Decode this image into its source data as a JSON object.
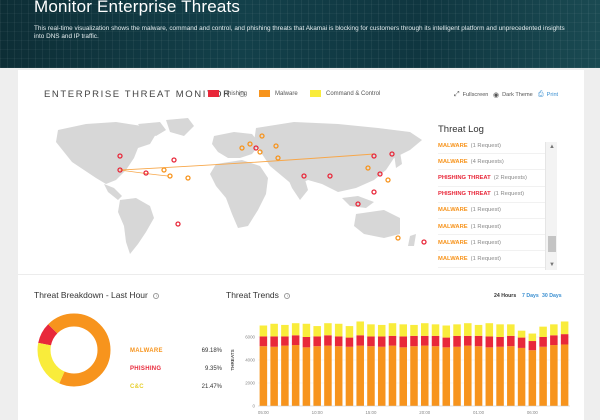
{
  "hero": {
    "title": "Monitor Enterprise Threats",
    "description": "This real-time visualization shows the malware, command and control, and phishing threats that Akamai is blocking for customers through its intelligent platform and unprecedented insights into DNS and IP traffic."
  },
  "monitor": {
    "title": "ENTERPRISE THREAT MONITOR",
    "legend": [
      {
        "label": "Phishing",
        "color": "#e8283a"
      },
      {
        "label": "Malware",
        "color": "#f7941d"
      },
      {
        "label": "Command & Control",
        "color": "#f9ec3b"
      }
    ],
    "toolbar": {
      "fullscreen": "Fullscreen",
      "dark_theme": "Dark Theme",
      "print": "Print",
      "fullscreen_icon": "expand-icon",
      "dark_theme_icon": "radio-icon",
      "print_icon": "printer-icon"
    }
  },
  "threat_log": {
    "title": "Threat Log",
    "entries": [
      {
        "type": "MALWARE",
        "detail": "(1 Request)",
        "color": "#f7941d"
      },
      {
        "type": "MALWARE",
        "detail": "(4 Requests)",
        "color": "#f7941d"
      },
      {
        "type": "PHISHING THREAT",
        "detail": "(2 Requests)",
        "color": "#e8283a"
      },
      {
        "type": "PHISHING THREAT",
        "detail": "(1 Request)",
        "color": "#e8283a"
      },
      {
        "type": "MALWARE",
        "detail": "(1 Request)",
        "color": "#f7941d"
      },
      {
        "type": "MALWARE",
        "detail": "(1 Request)",
        "color": "#f7941d"
      },
      {
        "type": "MALWARE",
        "detail": "(1 Request)",
        "color": "#f7941d"
      },
      {
        "type": "MALWARE",
        "detail": "(1 Request)",
        "color": "#f7941d"
      }
    ]
  },
  "breakdown": {
    "title": "Threat Breakdown - Last Hour",
    "rows": [
      {
        "label": "MALWARE",
        "pct": "69.18%",
        "value": 69.18,
        "color": "#f7941d"
      },
      {
        "label": "PHISHING",
        "pct": "9.35%",
        "value": 9.35,
        "color": "#e8283a"
      },
      {
        "label": "C&C",
        "pct": "21.47%",
        "value": 21.47,
        "color": "#f9ec3b"
      }
    ]
  },
  "trends": {
    "title": "Threat Trends",
    "ranges": [
      "24 Hours",
      "7 Days",
      "30 Days"
    ]
  },
  "chart_data": {
    "type": "bar",
    "stacked": true,
    "ylabel": "THREATS",
    "ylim": [
      0,
      8000
    ],
    "yticks": [
      "0",
      "2000",
      "4000",
      "6000"
    ],
    "xticks": [
      "05:00",
      "10:00",
      "15:00",
      "20:00",
      "01:00",
      "06:00"
    ],
    "series": [
      {
        "name": "Malware",
        "color": "#f7941d",
        "values": [
          5200,
          5150,
          5250,
          5300,
          5100,
          5200,
          5250,
          5200,
          5150,
          5250,
          5200,
          5150,
          5250,
          5100,
          5200,
          5250,
          5200,
          5100,
          5150,
          5250,
          5200,
          5100,
          5150,
          5200,
          5050,
          4850,
          5150,
          5300,
          5350
        ]
      },
      {
        "name": "Phishing",
        "color": "#e8283a",
        "values": [
          850,
          900,
          800,
          850,
          900,
          850,
          900,
          850,
          800,
          900,
          850,
          900,
          850,
          950,
          900,
          850,
          900,
          850,
          950,
          850,
          900,
          950,
          850,
          900,
          900,
          800,
          850,
          850,
          900
        ]
      },
      {
        "name": "Command & Control",
        "color": "#f9ec3b",
        "values": [
          950,
          1100,
          1000,
          1050,
          1150,
          900,
          1050,
          1100,
          1000,
          1200,
          1050,
          1000,
          1100,
          1050,
          950,
          1100,
          1000,
          1050,
          1000,
          1100,
          950,
          1150,
          1100,
          1000,
          600,
          650,
          900,
          950,
          1100
        ]
      }
    ]
  }
}
